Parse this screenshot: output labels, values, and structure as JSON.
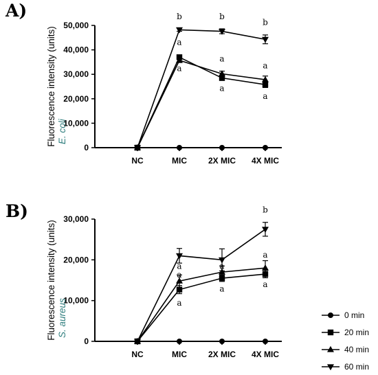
{
  "figure": {
    "colors": {
      "line": "#000000",
      "organism_label": "#2e7d7d"
    }
  },
  "chart_data": [
    {
      "type": "line",
      "panel_label": "A)",
      "ylabel": "Fluorescence intensity (units)",
      "organism": "E. coli",
      "categories": [
        "NC",
        "MIC",
        "2X MIC",
        "4X MIC"
      ],
      "ylim": [
        0,
        50000
      ],
      "y_ticks": [
        0,
        10000,
        20000,
        30000,
        40000,
        50000
      ],
      "y_tick_labels": [
        "0",
        "10,000",
        "20,000",
        "30,000",
        "40,000",
        "50,000"
      ],
      "grid": false,
      "series": [
        {
          "name": "0 min",
          "marker": "circle",
          "values": [
            0,
            0,
            0,
            0
          ],
          "errors": [
            0,
            0,
            0,
            0
          ]
        },
        {
          "name": "20 min",
          "marker": "square",
          "values": [
            0,
            37000,
            28500,
            25800
          ],
          "errors": [
            0,
            800,
            1000,
            1200
          ]
        },
        {
          "name": "40 min",
          "marker": "triangle-up",
          "values": [
            0,
            35700,
            30200,
            27800
          ],
          "errors": [
            0,
            900,
            1100,
            1500
          ]
        },
        {
          "name": "60 min",
          "marker": "triangle-down",
          "values": [
            0,
            48200,
            47600,
            44300
          ],
          "errors": [
            0,
            600,
            1000,
            1800
          ]
        }
      ],
      "significance_letters": [
        {
          "category": "MIC",
          "value": 52500,
          "text": "b"
        },
        {
          "category": "2X MIC",
          "value": 52500,
          "text": "b"
        },
        {
          "category": "4X MIC",
          "value": 50200,
          "text": "b"
        },
        {
          "category": "MIC",
          "value": 42000,
          "text": "a"
        },
        {
          "category": "MIC",
          "value": 31300,
          "text": "a"
        },
        {
          "category": "2X MIC",
          "value": 35200,
          "text": "a"
        },
        {
          "category": "2X MIC",
          "value": 23200,
          "text": "a"
        },
        {
          "category": "4X MIC",
          "value": 32500,
          "text": "a"
        },
        {
          "category": "4X MIC",
          "value": 20000,
          "text": "a"
        }
      ]
    },
    {
      "type": "line",
      "panel_label": "B)",
      "ylabel": "Fluorescence intensity (units)",
      "organism": "S. aureus",
      "categories": [
        "NC",
        "MIC",
        "2X MIC",
        "4X MIC"
      ],
      "ylim": [
        0,
        30000
      ],
      "y_ticks": [
        0,
        10000,
        20000,
        30000
      ],
      "y_tick_labels": [
        "0",
        "10,000",
        "20,000",
        "30,000"
      ],
      "grid": false,
      "series": [
        {
          "name": "0 min",
          "marker": "circle",
          "values": [
            0,
            0,
            0,
            0
          ],
          "errors": [
            0,
            0,
            0,
            0
          ]
        },
        {
          "name": "20 min",
          "marker": "square",
          "values": [
            0,
            12700,
            15500,
            16500
          ],
          "errors": [
            0,
            1000,
            800,
            900
          ]
        },
        {
          "name": "40 min",
          "marker": "triangle-up",
          "values": [
            0,
            14800,
            17000,
            18000
          ],
          "errors": [
            0,
            1500,
            1500,
            1800
          ]
        },
        {
          "name": "60 min",
          "marker": "triangle-down",
          "values": [
            0,
            21000,
            20000,
            27500
          ],
          "errors": [
            0,
            1800,
            2700,
            1700
          ]
        }
      ],
      "significance_letters": [
        {
          "category": "MIC",
          "value": 17800,
          "text": "a"
        },
        {
          "category": "MIC",
          "value": 15700,
          "text": "a"
        },
        {
          "category": "MIC",
          "value": 8800,
          "text": "a"
        },
        {
          "category": "2X MIC",
          "value": 17800,
          "text": "a"
        },
        {
          "category": "2X MIC",
          "value": 12200,
          "text": "a"
        },
        {
          "category": "4X MIC",
          "value": 31600,
          "text": "b"
        },
        {
          "category": "4X MIC",
          "value": 20600,
          "text": "a"
        },
        {
          "category": "4X MIC",
          "value": 13300,
          "text": "a"
        }
      ]
    }
  ],
  "legend": {
    "placement": "bottom-right",
    "items": [
      {
        "label": "0 min",
        "marker": "circle"
      },
      {
        "label": "20 min",
        "marker": "square"
      },
      {
        "label": "40 min",
        "marker": "triangle-up"
      },
      {
        "label": "60 min",
        "marker": "triangle-down"
      }
    ]
  }
}
